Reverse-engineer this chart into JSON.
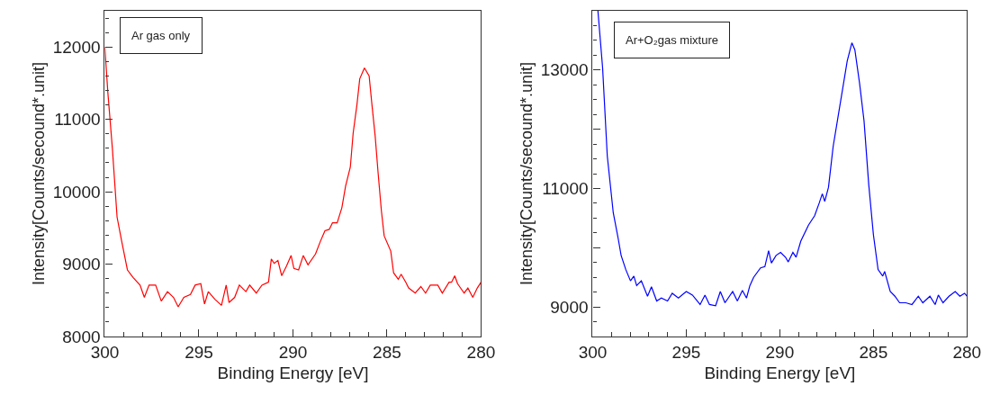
{
  "chart_data": [
    {
      "type": "line",
      "xlabel": "Binding Energy [eV]",
      "ylabel": "Intensity[Counts/secound*.unit]",
      "annotations": [
        "Ar gas only"
      ],
      "xlim": [
        300,
        280
      ],
      "ylim": [
        8000,
        12500
      ],
      "xticks": [
        300,
        295,
        290,
        285,
        280
      ],
      "yticks": [
        8000,
        9000,
        10000,
        11000,
        12000
      ],
      "x": [
        300,
        299.84,
        299.6,
        299.35,
        299.1,
        298.8,
        298.5,
        298.13,
        297.9,
        297.65,
        297.3,
        297.0,
        296.67,
        296.35,
        296.1,
        295.8,
        295.45,
        295.2,
        294.9,
        294.7,
        294.5,
        294.15,
        293.8,
        293.55,
        293.4,
        293.1,
        292.85,
        292.5,
        292.3,
        291.95,
        291.65,
        291.3,
        291.15,
        291.0,
        290.8,
        290.6,
        290.35,
        290.1,
        289.95,
        289.7,
        289.45,
        289.2,
        288.8,
        288.55,
        288.3,
        288.07,
        287.9,
        287.65,
        287.4,
        287.2,
        286.95,
        286.8,
        286.6,
        286.45,
        286.2,
        285.95,
        285.8,
        285.63,
        285.47,
        285.3,
        285.15,
        284.8,
        284.65,
        284.4,
        284.25,
        284.0,
        283.85,
        283.5,
        283.2,
        282.95,
        282.7,
        282.3,
        282.06,
        281.7,
        281.57,
        281.4,
        281.25,
        280.9,
        280.7,
        280.44,
        280.2,
        280
      ],
      "series": [
        {
          "color": "#ff0000",
          "values": [
            12000,
            11370,
            10600,
            9650,
            9310,
            8920,
            8815,
            8710,
            8540,
            8710,
            8710,
            8490,
            8620,
            8540,
            8410,
            8540,
            8580,
            8710,
            8730,
            8450,
            8620,
            8515,
            8430,
            8710,
            8470,
            8540,
            8710,
            8620,
            8710,
            8600,
            8710,
            8750,
            9070,
            9010,
            9050,
            8840,
            8970,
            9120,
            8940,
            8920,
            9120,
            8990,
            9140,
            9310,
            9460,
            9480,
            9570,
            9570,
            9780,
            10080,
            10340,
            10810,
            11200,
            11560,
            11710,
            11600,
            11200,
            10770,
            10250,
            9740,
            9390,
            9180,
            8880,
            8790,
            8860,
            8750,
            8670,
            8600,
            8690,
            8600,
            8710,
            8710,
            8600,
            8750,
            8750,
            8840,
            8730,
            8600,
            8670,
            8540,
            8670,
            8750
          ]
        }
      ]
    },
    {
      "type": "line",
      "xlabel": "Binding Energy [eV]",
      "ylabel": "Intensity[Counts/secound*.unit]",
      "annotations": [
        "Ar+O₂gas mixture"
      ],
      "xlim": [
        300,
        280
      ],
      "ylim": [
        8500,
        14000
      ],
      "xticks": [
        300,
        295,
        290,
        285,
        280
      ],
      "yticks": [
        9000,
        {
          "value": 10000,
          "label": null
        },
        11000,
        {
          "value": 12000,
          "label": null
        },
        13000
      ],
      "x": [
        299.72,
        299.47,
        299.22,
        298.9,
        298.64,
        298.48,
        298.23,
        297.98,
        297.8,
        297.65,
        297.4,
        297.07,
        296.86,
        296.58,
        296.33,
        296.0,
        295.75,
        295.42,
        295.0,
        294.67,
        294.26,
        294.0,
        293.76,
        293.43,
        293.18,
        292.93,
        292.52,
        292.27,
        292.0,
        291.78,
        291.6,
        291.4,
        291.03,
        290.8,
        290.6,
        290.45,
        290.2,
        289.96,
        289.7,
        289.55,
        289.3,
        289.13,
        288.88,
        288.47,
        288.14,
        287.9,
        287.73,
        287.6,
        287.4,
        287.15,
        286.9,
        286.65,
        286.4,
        286.15,
        285.99,
        285.74,
        285.5,
        285.25,
        285.0,
        284.75,
        284.5,
        284.4,
        284.1,
        283.85,
        283.6,
        283.27,
        282.94,
        282.6,
        282.36,
        281.98,
        281.7,
        281.53,
        281.28,
        280.96,
        280.63,
        280.38,
        280.13,
        280
      ],
      "series": [
        {
          "color": "#0000ff",
          "values": [
            14000,
            13040,
            11550,
            10590,
            10160,
            9870,
            9630,
            9440,
            9520,
            9360,
            9440,
            9180,
            9340,
            9100,
            9150,
            9100,
            9230,
            9150,
            9260,
            9200,
            9040,
            9200,
            9040,
            9020,
            9260,
            9070,
            9260,
            9100,
            9280,
            9150,
            9360,
            9500,
            9660,
            9680,
            9950,
            9740,
            9870,
            9920,
            9840,
            9760,
            9920,
            9840,
            10110,
            10380,
            10540,
            10750,
            10910,
            10780,
            11020,
            11710,
            12190,
            12670,
            13150,
            13460,
            13340,
            12780,
            12140,
            11070,
            10220,
            9630,
            9520,
            9600,
            9260,
            9180,
            9070,
            9070,
            9040,
            9180,
            9070,
            9180,
            9040,
            9200,
            9070,
            9180,
            9260,
            9180,
            9230,
            9180
          ]
        }
      ]
    }
  ]
}
